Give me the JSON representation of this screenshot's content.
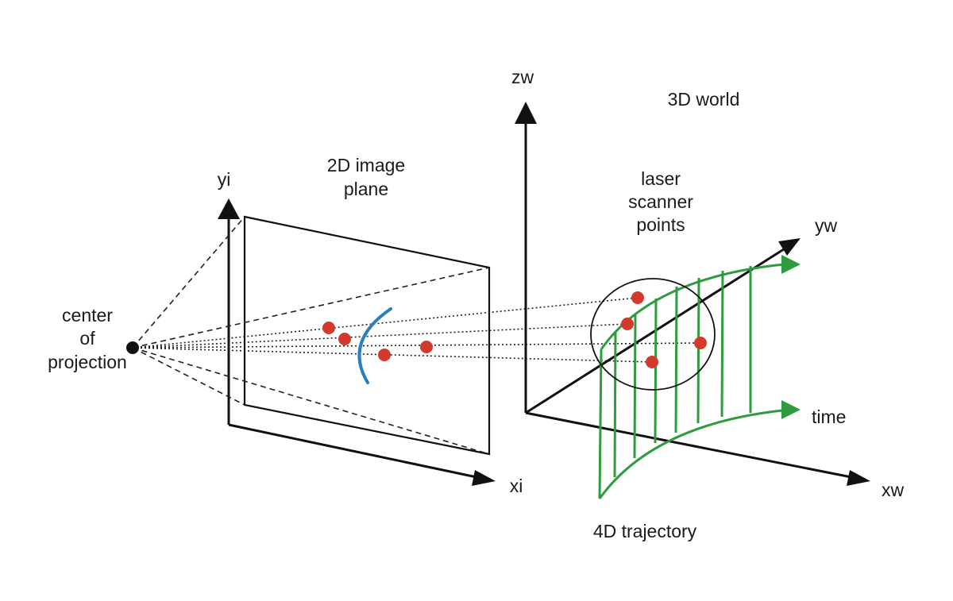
{
  "labels": {
    "center_line1": "center",
    "center_line2": "of",
    "center_line3": "projection",
    "image_plane_line1": "2D image",
    "image_plane_line2": "plane",
    "axis_yi": "yi",
    "axis_xi": "xi",
    "axis_zw": "zw",
    "axis_yw": "yw",
    "axis_xw": "xw",
    "world": "3D world",
    "laser_line1": "laser",
    "laser_line2": "scanner",
    "laser_line3": "points",
    "time": "time",
    "trajectory": "4D trajectory"
  },
  "colors": {
    "trajectory": "#2e9c3e",
    "points": "#d43a2c",
    "projection_curve": "#2a7fc1",
    "ink": "#111111"
  }
}
